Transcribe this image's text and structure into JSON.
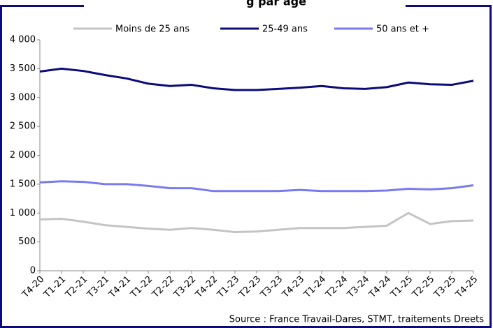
{
  "chart_data": {
    "type": "line",
    "title": "g par âge",
    "source": "Source : France Travail-Dares, STMT, traitements Dreets",
    "categories": [
      "T4-20",
      "T1-21",
      "T2-21",
      "T3-21",
      "T4-21",
      "T1-22",
      "T2-22",
      "T3-22",
      "T4-22",
      "T1-23",
      "T2-23",
      "T3-23",
      "T4-23",
      "T1-24",
      "T2-24",
      "T3-24",
      "T4-24",
      "T1-25",
      "T2-25",
      "T3-25",
      "T4-25"
    ],
    "series": [
      {
        "name": "Moins de 25 ans",
        "color": "#c4c4c4",
        "values": [
          890,
          900,
          850,
          790,
          760,
          730,
          710,
          740,
          710,
          670,
          680,
          710,
          740,
          740,
          740,
          760,
          780,
          1000,
          810,
          860,
          870
        ]
      },
      {
        "name": "25-49 ans",
        "color": "#0b0b7a",
        "values": [
          3450,
          3500,
          3460,
          3390,
          3330,
          3240,
          3200,
          3220,
          3160,
          3130,
          3130,
          3150,
          3170,
          3200,
          3160,
          3150,
          3180,
          3260,
          3230,
          3220,
          3290
        ]
      },
      {
        "name": "50 ans et +",
        "color": "#7a7af0",
        "values": [
          1530,
          1550,
          1540,
          1500,
          1500,
          1470,
          1430,
          1430,
          1380,
          1380,
          1380,
          1380,
          1400,
          1380,
          1380,
          1380,
          1390,
          1420,
          1410,
          1430,
          1480
        ]
      }
    ],
    "ylim": [
      0,
      4000
    ],
    "yticks": [
      0,
      500,
      {
        "value": 1000,
        "label": "1 000"
      },
      {
        "value": 1500,
        "label": "1 500"
      },
      {
        "value": 2000,
        "label": "2 000"
      },
      {
        "value": 2500,
        "label": "2 500"
      },
      {
        "value": 3000,
        "label": "3 000"
      },
      {
        "value": 3500,
        "label": "3 500"
      },
      {
        "value": 4000,
        "label": "4 000"
      }
    ],
    "grid": false
  }
}
